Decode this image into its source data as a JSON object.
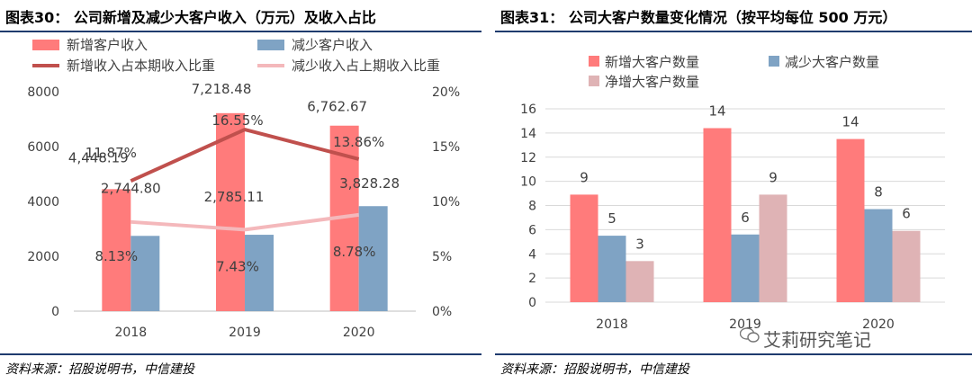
{
  "left": {
    "title": "图表30：  公司新增及减少大客户收入（万元）及收入占比",
    "source": "资料来源：招股说明书，中信建投"
  },
  "right": {
    "title": "图表31：  公司大客户数量变化情况（按平均每位 500 万元）",
    "source": "资料来源：招股说明书，中信建投"
  },
  "watermark": "艾莉研究笔记",
  "chart_data": [
    {
      "type": "bar",
      "title": "公司新增及减少大客户收入（万元）及收入占比",
      "categories": [
        "2018",
        "2019",
        "2020"
      ],
      "series": [
        {
          "name": "新增客户收入",
          "kind": "bar",
          "axis": "left",
          "color": "#ff7b7b",
          "values": [
            4448.19,
            7218.48,
            6762.67
          ],
          "labels": [
            "4,448.19",
            "7,218.48",
            "6,762.67"
          ]
        },
        {
          "name": "减少客户收入",
          "kind": "bar",
          "axis": "left",
          "color": "#7fa3c4",
          "values": [
            2744.8,
            2785.11,
            3828.28
          ],
          "labels": [
            "2,744.80",
            "2,785.11",
            "3,828.28"
          ]
        },
        {
          "name": "新增收入占本期收入比重",
          "kind": "line",
          "axis": "right",
          "color": "#c0504d",
          "values": [
            11.87,
            16.55,
            13.86
          ],
          "labels": [
            "11.87%",
            "16.55%",
            "13.86%"
          ]
        },
        {
          "name": "减少收入占上期收入比重",
          "kind": "line",
          "axis": "right",
          "color": "#f4b8bb",
          "values": [
            8.13,
            7.43,
            8.78
          ],
          "labels": [
            "8.13%",
            "7.43%",
            "8.78%"
          ]
        }
      ],
      "ylim": [
        0,
        8000
      ],
      "yticks": [
        "0",
        "2000",
        "4000",
        "6000",
        "8000"
      ],
      "y2lim": [
        0,
        20
      ],
      "y2ticks": [
        "0%",
        "5%",
        "10%",
        "15%",
        "20%"
      ]
    },
    {
      "type": "bar",
      "title": "公司大客户数量变化情况（按平均每位 500 万元）",
      "categories": [
        "2018",
        "2019",
        "2020"
      ],
      "series": [
        {
          "name": "新增大客户数量",
          "color": "#ff7b7b",
          "values": [
            8.9,
            14.4,
            13.5
          ],
          "labels": [
            "9",
            "14",
            "14"
          ]
        },
        {
          "name": "减少大客户数量",
          "color": "#7fa3c4",
          "values": [
            5.5,
            5.6,
            7.7
          ],
          "labels": [
            "5",
            "6",
            "8"
          ]
        },
        {
          "name": "净增大客户数量",
          "color": "#dfb3b5",
          "values": [
            3.4,
            8.9,
            5.9
          ],
          "labels": [
            "3",
            "9",
            "6"
          ]
        }
      ],
      "ylim": [
        0,
        16
      ],
      "yticks": [
        "0",
        "2",
        "4",
        "6",
        "8",
        "10",
        "12",
        "14",
        "16"
      ]
    }
  ]
}
